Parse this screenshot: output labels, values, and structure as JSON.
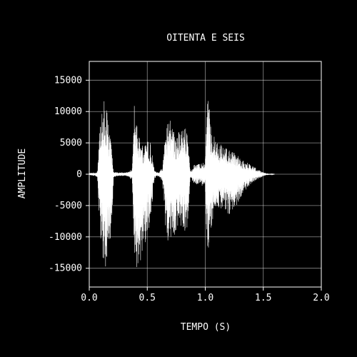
{
  "chart_data": {
    "type": "line",
    "title": "OITENTA E SEIS",
    "xlabel": "TEMPO (S)",
    "ylabel": "AMPLITUDE",
    "xlim": [
      0.0,
      2.0
    ],
    "ylim": [
      -18000,
      18000
    ],
    "x_ticks": [
      0.0,
      0.5,
      1.0,
      1.5,
      2.0
    ],
    "x_tick_labels": [
      "0.0",
      "0.5",
      "1.0",
      "1.5",
      "2.0"
    ],
    "y_ticks": [
      15000,
      10000,
      5000,
      0,
      -5000,
      -10000,
      -15000
    ],
    "y_tick_labels": [
      "15000",
      "10000",
      "5000",
      "0",
      "-5000",
      "-10000",
      "-15000"
    ],
    "grid": true,
    "background_color": "#000000",
    "foreground_color": "#ffffff",
    "series": [
      {
        "color": "#ffffff",
        "envelope": {
          "t": [
            0.0,
            0.05,
            0.07,
            0.09,
            0.11,
            0.13,
            0.16,
            0.19,
            0.21,
            0.25,
            0.3,
            0.34,
            0.37,
            0.39,
            0.41,
            0.44,
            0.47,
            0.5,
            0.53,
            0.56,
            0.58,
            0.6,
            0.63,
            0.66,
            0.69,
            0.71,
            0.74,
            0.77,
            0.8,
            0.83,
            0.85,
            0.87,
            0.9,
            0.95,
            1.0,
            1.02,
            1.04,
            1.06,
            1.08,
            1.1,
            1.13,
            1.16,
            1.2,
            1.25,
            1.3,
            1.35,
            1.4,
            1.45,
            1.5,
            1.53,
            1.55,
            1.6
          ],
          "max": [
            200,
            300,
            500,
            8000,
            11000,
            13000,
            9000,
            5000,
            400,
            300,
            300,
            400,
            1000,
            12500,
            8500,
            5000,
            4500,
            5500,
            5000,
            800,
            300,
            400,
            1000,
            7000,
            9500,
            7500,
            6500,
            7000,
            7000,
            7500,
            6500,
            400,
            1500,
            1700,
            2000,
            14000,
            10000,
            7000,
            6000,
            5500,
            5000,
            4500,
            4000,
            3500,
            2700,
            2000,
            1500,
            800,
            300,
            150,
            100,
            0
          ],
          "min": [
            -200,
            -300,
            -500,
            -9000,
            -12000,
            -16000,
            -14000,
            -9500,
            -500,
            -300,
            -300,
            -400,
            -1000,
            -17000,
            -15000,
            -14000,
            -12000,
            -9500,
            -7500,
            -800,
            -300,
            -400,
            -1200,
            -9000,
            -12500,
            -10500,
            -9500,
            -8500,
            -9500,
            -9000,
            -8500,
            -500,
            -1500,
            -1700,
            -2100,
            -16000,
            -10500,
            -7500,
            -6500,
            -6000,
            -5500,
            -6000,
            -6500,
            -6000,
            -3800,
            -2500,
            -1500,
            -800,
            -300,
            -150,
            -100,
            0
          ]
        }
      }
    ]
  }
}
